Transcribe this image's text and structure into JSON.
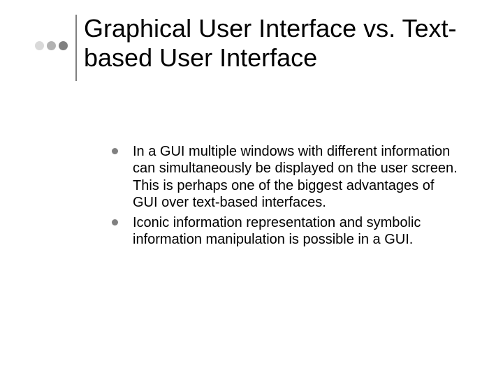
{
  "slide": {
    "background_color": "#ffffff",
    "title": {
      "text": "Graphical User Interface vs. Text-based User Interface",
      "font_size": 36,
      "color": "#000000"
    },
    "decor": {
      "dot_colors": [
        "#d9d9d9",
        "#b2b2b2",
        "#808080"
      ],
      "dot_size": 13,
      "divider_color": "#808080"
    },
    "bullets": {
      "marker_color": "#808080",
      "font_size": 20,
      "text_color": "#000000",
      "items": [
        "In a GUI multiple windows with different information can simultaneously be displayed on the user screen. This is perhaps one of the biggest advantages of GUI over text-based interfaces.",
        "Iconic information representation and symbolic information manipulation is possible in a GUI."
      ]
    }
  }
}
